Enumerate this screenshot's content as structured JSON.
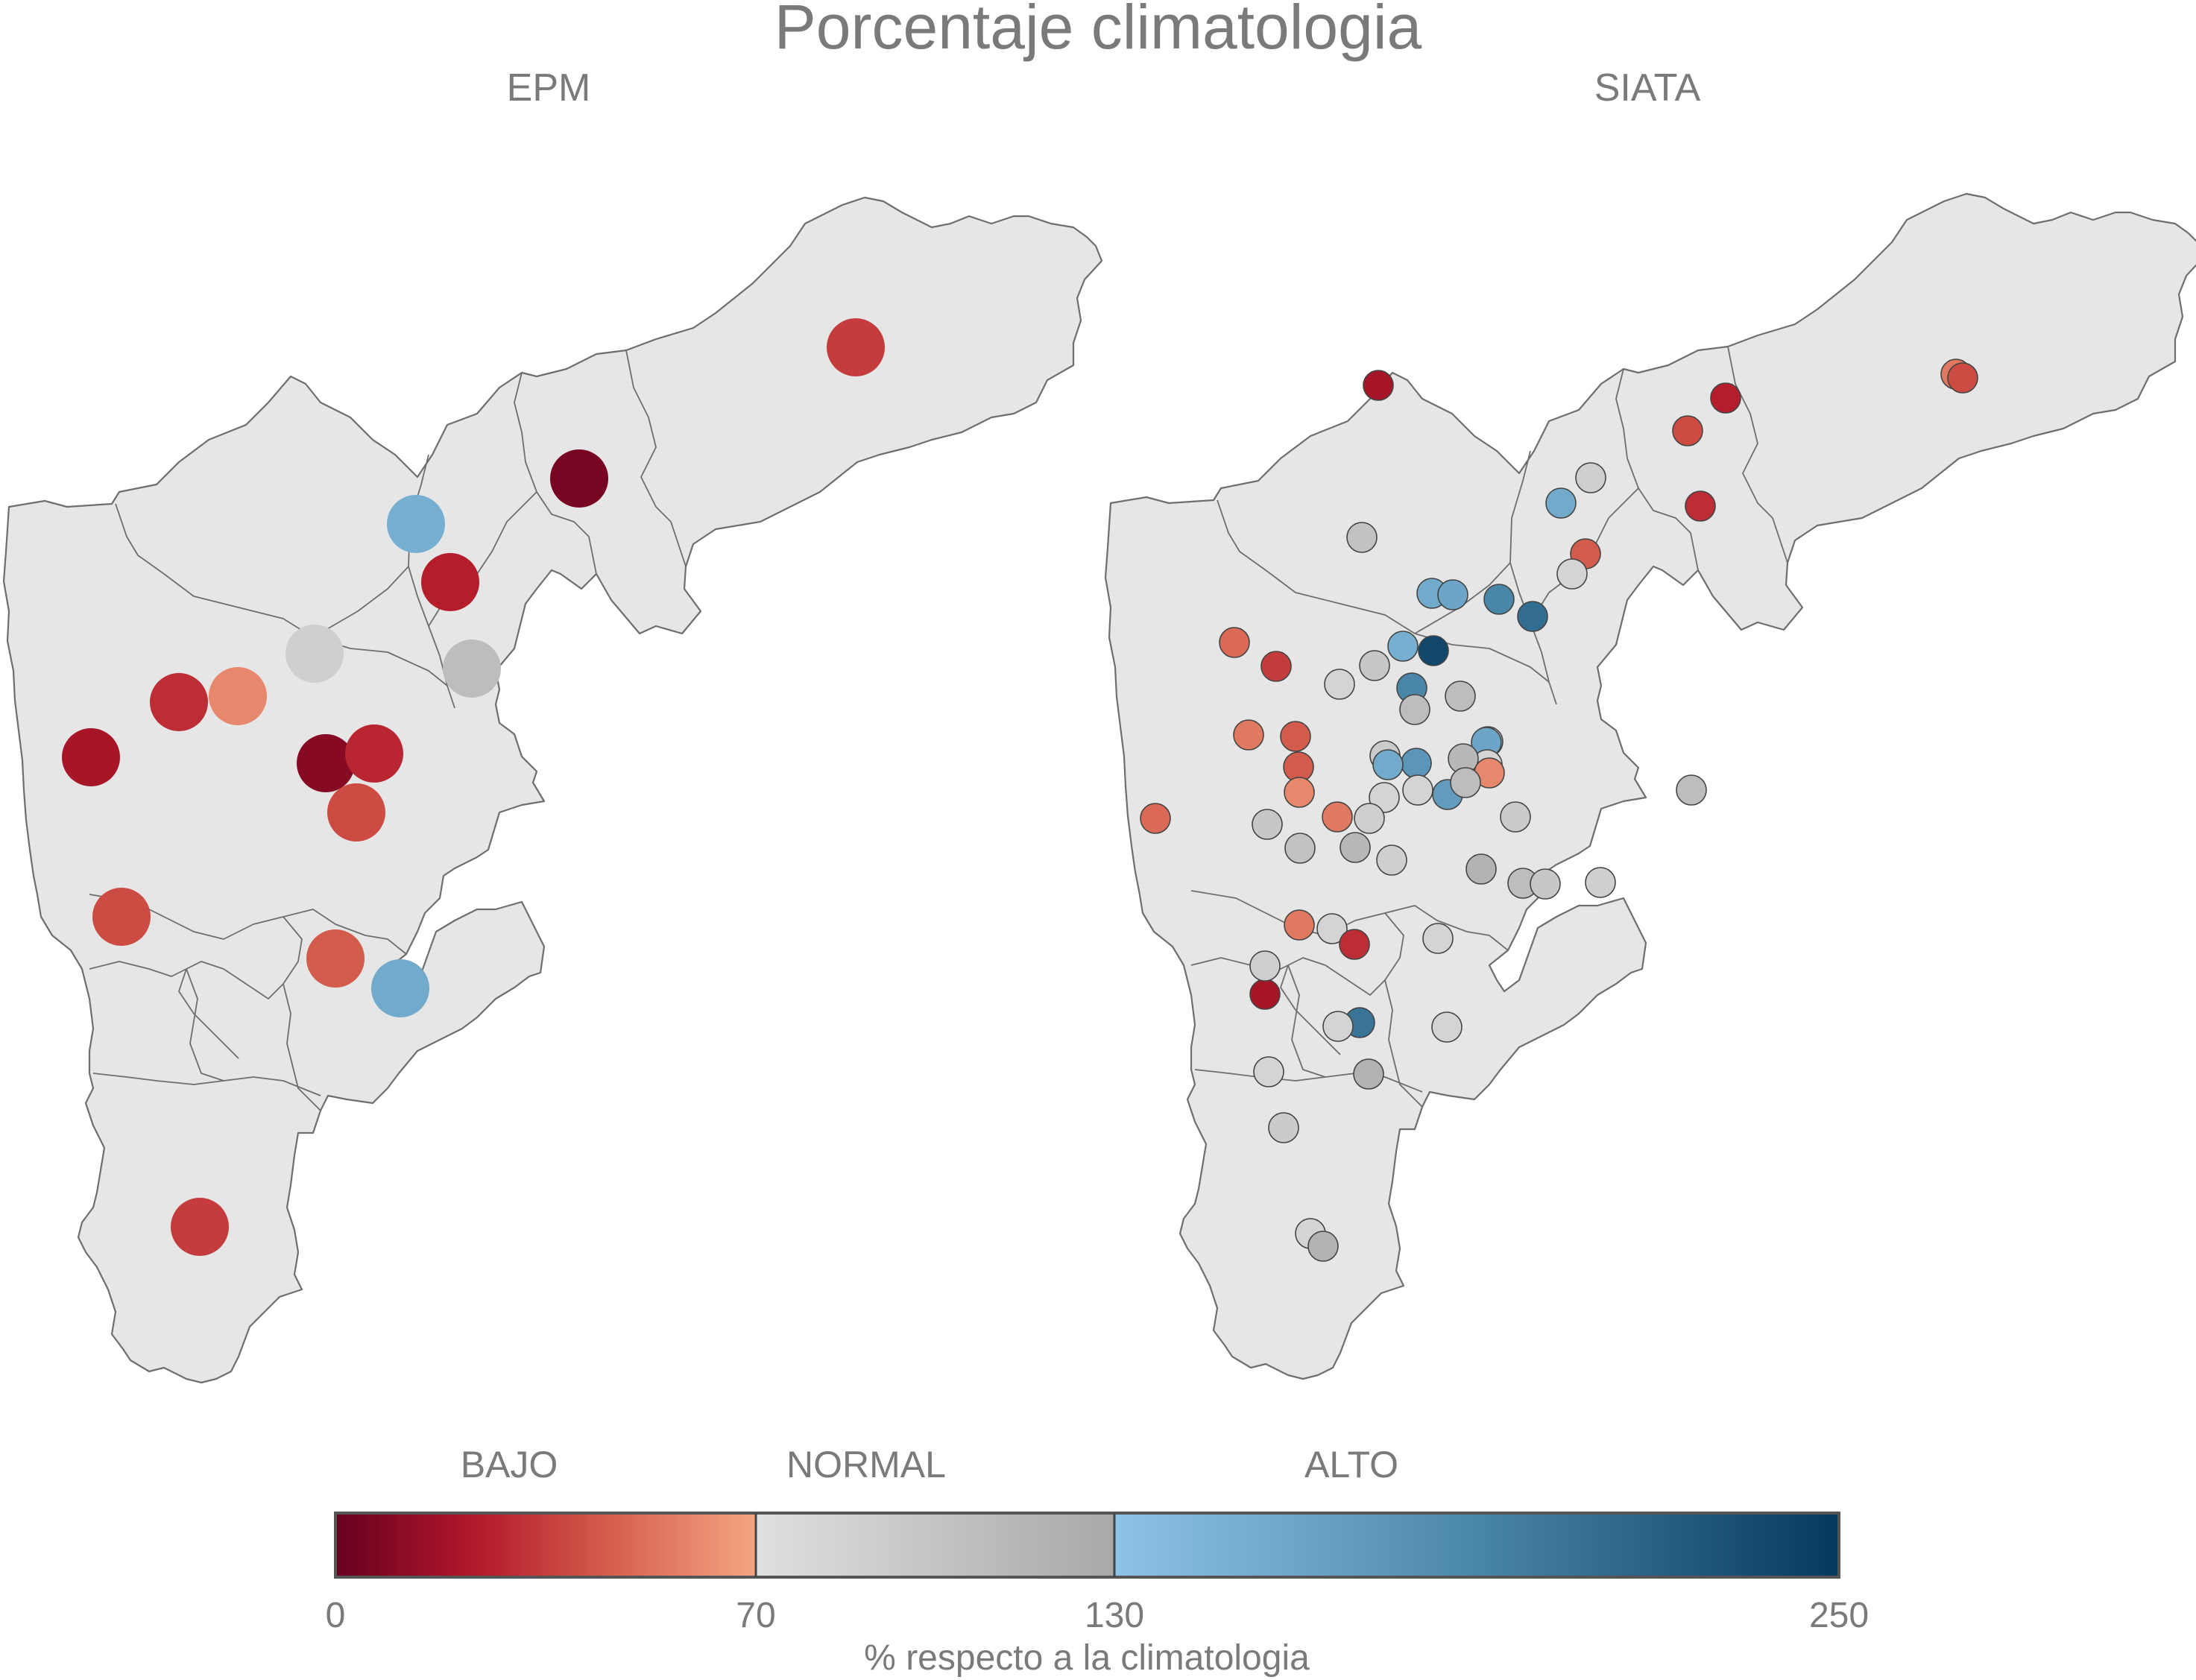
{
  "title": "Porcentaje climatologia",
  "panels": [
    {
      "id": "epm",
      "subtitle": "EPM",
      "stations": [
        {
          "pct": 35
        },
        {
          "pct": 5
        },
        {
          "pct": 150
        },
        {
          "pct": 25
        },
        {
          "pct": 90
        },
        {
          "pct": 110
        },
        {
          "pct": 30
        },
        {
          "pct": 60
        },
        {
          "pct": 20
        },
        {
          "pct": 10
        },
        {
          "pct": 28
        },
        {
          "pct": 40
        },
        {
          "pct": 40
        },
        {
          "pct": 45
        },
        {
          "pct": 155
        },
        {
          "pct": 35
        }
      ]
    },
    {
      "id": "siata",
      "subtitle": "SIATA",
      "stations": [
        {
          "pct": 20
        },
        {
          "pct": 55
        },
        {
          "pct": 40
        },
        {
          "pct": 25
        },
        {
          "pct": 40
        },
        {
          "pct": 30
        },
        {
          "pct": 90
        },
        {
          "pct": 155
        },
        {
          "pct": 105
        },
        {
          "pct": 45
        },
        {
          "pct": 85
        },
        {
          "pct": 155
        },
        {
          "pct": 160
        },
        {
          "pct": 190
        },
        {
          "pct": 210
        },
        {
          "pct": 50
        },
        {
          "pct": 35
        },
        {
          "pct": 150
        },
        {
          "pct": 240
        },
        {
          "pct": 100
        },
        {
          "pct": 85
        },
        {
          "pct": 190
        },
        {
          "pct": 110
        },
        {
          "pct": 110
        },
        {
          "pct": 55
        },
        {
          "pct": 45
        },
        {
          "pct": 75
        },
        {
          "pct": 160
        },
        {
          "pct": 175
        },
        {
          "pct": 95
        },
        {
          "pct": 85
        },
        {
          "pct": 115
        },
        {
          "pct": 45
        },
        {
          "pct": 155
        },
        {
          "pct": 170
        },
        {
          "pct": 60
        },
        {
          "pct": 85
        },
        {
          "pct": 85
        },
        {
          "pct": 110
        },
        {
          "pct": 95
        },
        {
          "pct": 50
        },
        {
          "pct": 60
        },
        {
          "pct": 90
        },
        {
          "pct": 55
        },
        {
          "pct": 110
        },
        {
          "pct": 100
        },
        {
          "pct": 90
        },
        {
          "pct": 115
        },
        {
          "pct": 105
        },
        {
          "pct": 120
        },
        {
          "pct": 110
        },
        {
          "pct": 55
        },
        {
          "pct": 85
        },
        {
          "pct": 30
        },
        {
          "pct": 100
        },
        {
          "pct": 90
        },
        {
          "pct": 20
        },
        {
          "pct": 85
        },
        {
          "pct": 205
        },
        {
          "pct": 90
        },
        {
          "pct": 85
        },
        {
          "pct": 120
        },
        {
          "pct": 85
        },
        {
          "pct": 85
        },
        {
          "pct": 95
        },
        {
          "pct": 85
        },
        {
          "pct": 120
        }
      ]
    }
  ],
  "colorbar": {
    "categories": [
      "BAJO",
      "NORMAL",
      "ALTO"
    ],
    "ticks": [
      "0",
      "70",
      "130",
      "250"
    ],
    "tick_values": [
      0,
      70,
      130,
      250
    ],
    "label": "% respecto a la climatologia",
    "segments": [
      {
        "range": [
          0,
          70
        ],
        "colors": [
          "#67001f",
          "#b2182b",
          "#d6604d",
          "#f4a582"
        ]
      },
      {
        "range": [
          70,
          130
        ],
        "colors": [
          "#e0e0e0",
          "#c7c7c7",
          "#a8a8a8"
        ]
      },
      {
        "range": [
          130,
          250
        ],
        "colors": [
          "#8ec4e6",
          "#4a86a8",
          "#053a5c"
        ]
      }
    ]
  }
}
